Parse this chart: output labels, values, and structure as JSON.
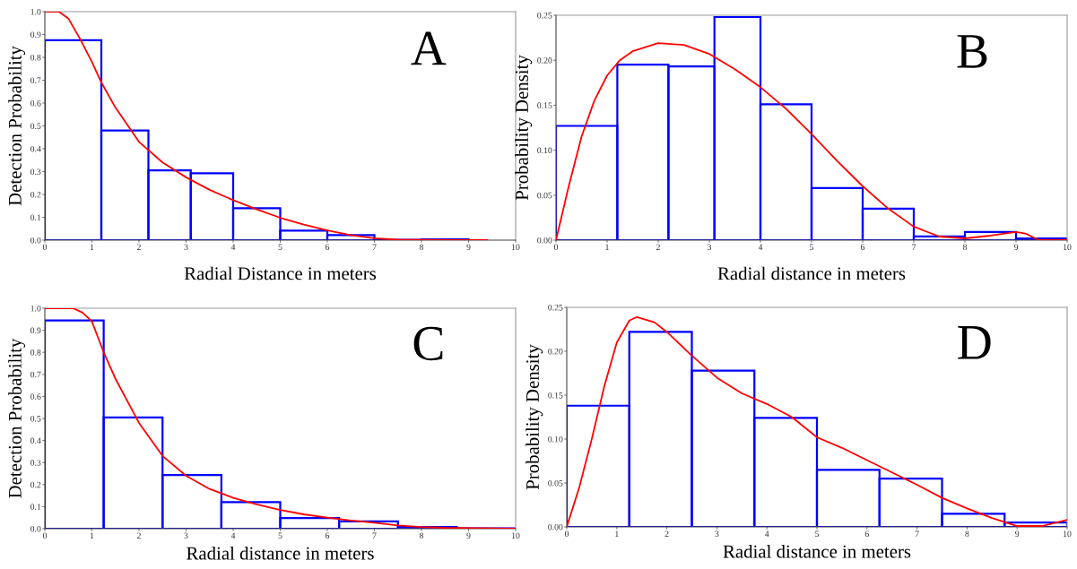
{
  "chart_data": [
    {
      "type": "histogram",
      "xlabel": "Radial Distance in meters",
      "ylabel": "Detection Probability",
      "annotations": [
        "A"
      ],
      "color": "#0000ff",
      "bins": [
        0,
        1.2,
        2.2,
        3.1,
        4,
        5,
        6,
        7,
        8,
        9
      ],
      "values": [
        0.875,
        0.48,
        0.305,
        0.293,
        0.14,
        0.042,
        0.022,
        0.002,
        0.003
      ],
      "series": [
        {
          "type": "line",
          "color": "#ff0000",
          "x": [
            0,
            0.3,
            0.5,
            0.75,
            1,
            1.2,
            1.5,
            2,
            2.5,
            3,
            3.5,
            4,
            4.5,
            5,
            5.5,
            6,
            6.5,
            7,
            7.5,
            8,
            9.4
          ],
          "values": [
            1.0,
            1.0,
            0.97,
            0.88,
            0.78,
            0.69,
            0.58,
            0.43,
            0.34,
            0.275,
            0.22,
            0.175,
            0.135,
            0.098,
            0.068,
            0.043,
            0.022,
            0.008,
            0.002,
            0.001,
            0
          ]
        }
      ],
      "xlim": [
        0,
        10
      ],
      "xticks": [
        0,
        1,
        2,
        3,
        4,
        5,
        6,
        7,
        8,
        9,
        10
      ],
      "ylim": [
        0,
        1
      ],
      "yticks": [
        {
          "value": 0,
          "label": "0.0"
        },
        {
          "value": 0.1,
          "label": "0.1"
        },
        {
          "value": 0.2,
          "label": "0.2"
        },
        {
          "value": 0.3,
          "label": "0.3"
        },
        {
          "value": 0.4,
          "label": "0.4"
        },
        {
          "value": 0.5,
          "label": "0.5"
        },
        {
          "value": 0.6,
          "label": "0.6"
        },
        {
          "value": 0.7,
          "label": "0.7"
        },
        {
          "value": 0.8,
          "label": "0.8"
        },
        {
          "value": 0.9,
          "label": "0.9"
        },
        {
          "value": 1,
          "label": "1.0"
        }
      ]
    },
    {
      "type": "histogram",
      "xlabel": "Radial distance in meters",
      "ylabel": "Probability Density",
      "annotations": [
        "B"
      ],
      "color": "#0000ff",
      "bins": [
        0,
        1.2,
        2.2,
        3.1,
        4,
        5,
        6,
        7,
        8,
        9,
        10
      ],
      "values": [
        0.127,
        0.195,
        0.193,
        0.248,
        0.151,
        0.058,
        0.035,
        0.004,
        0.009,
        0.002
      ],
      "series": [
        {
          "type": "line",
          "color": "#ff0000",
          "x": [
            0,
            0.25,
            0.5,
            0.75,
            1,
            1.25,
            1.5,
            2,
            2.5,
            3,
            3.5,
            4,
            4.5,
            5,
            5.5,
            6,
            6.5,
            7,
            7.5,
            8,
            8.5,
            9,
            9.2,
            9.45,
            10
          ],
          "values": [
            0,
            0.06,
            0.115,
            0.155,
            0.183,
            0.2,
            0.21,
            0.219,
            0.217,
            0.207,
            0.19,
            0.17,
            0.146,
            0.118,
            0.088,
            0.06,
            0.035,
            0.015,
            0.004,
            0.002,
            0.005,
            0.009,
            0.007,
            0,
            0
          ]
        }
      ],
      "xlim": [
        0,
        10
      ],
      "xticks": [
        0,
        1,
        2,
        3,
        4,
        5,
        6,
        7,
        8,
        9,
        10
      ],
      "ylim": [
        0,
        0.25
      ],
      "yticks": [
        {
          "value": 0,
          "label": "0.00"
        },
        {
          "value": 0.05,
          "label": "0.05"
        },
        {
          "value": 0.1,
          "label": "0.10"
        },
        {
          "value": 0.15,
          "label": "0.15"
        },
        {
          "value": 0.2,
          "label": "0.20"
        },
        {
          "value": 0.25,
          "label": "0.25"
        }
      ]
    },
    {
      "type": "histogram",
      "xlabel": "Radial distance in meters",
      "ylabel": "Detection Probability",
      "annotations": [
        "C"
      ],
      "color": "#0000ff",
      "bins": [
        0,
        1.25,
        2.5,
        3.75,
        5,
        6.25,
        7.5,
        8.75,
        10
      ],
      "values": [
        0.945,
        0.505,
        0.243,
        0.12,
        0.048,
        0.033,
        0.008,
        0.002
      ],
      "series": [
        {
          "type": "line",
          "color": "#ff0000",
          "x": [
            0,
            0.6,
            0.8,
            1,
            1.25,
            1.5,
            2,
            2.5,
            3,
            3.5,
            4,
            4.5,
            5,
            5.5,
            6,
            6.5,
            7,
            7.5,
            8,
            8.5,
            10
          ],
          "values": [
            1.0,
            1.0,
            0.98,
            0.94,
            0.8,
            0.68,
            0.48,
            0.33,
            0.24,
            0.18,
            0.14,
            0.11,
            0.085,
            0.065,
            0.05,
            0.037,
            0.027,
            0.015,
            0.008,
            0.004,
            0
          ]
        }
      ],
      "xlim": [
        0,
        10
      ],
      "xticks": [
        0,
        1,
        2,
        3,
        4,
        5,
        6,
        7,
        8,
        9,
        10
      ],
      "ylim": [
        0,
        1
      ],
      "yticks": [
        {
          "value": 0,
          "label": "0.0"
        },
        {
          "value": 0.1,
          "label": "0.1"
        },
        {
          "value": 0.2,
          "label": "0.2"
        },
        {
          "value": 0.3,
          "label": "0.3"
        },
        {
          "value": 0.4,
          "label": "0.4"
        },
        {
          "value": 0.5,
          "label": "0.5"
        },
        {
          "value": 0.6,
          "label": "0.6"
        },
        {
          "value": 0.7,
          "label": "0.7"
        },
        {
          "value": 0.8,
          "label": "0.8"
        },
        {
          "value": 0.9,
          "label": "0.9"
        },
        {
          "value": 1,
          "label": "1.0"
        }
      ]
    },
    {
      "type": "histogram",
      "xlabel": "Radial distance in meters",
      "ylabel": "Probability Density",
      "annotations": [
        "D"
      ],
      "color": "#0000ff",
      "bins": [
        0,
        1.25,
        2.5,
        3.75,
        5,
        6.25,
        7.5,
        8.75,
        10
      ],
      "values": [
        0.138,
        0.222,
        0.178,
        0.124,
        0.065,
        0.055,
        0.015,
        0.005
      ],
      "series": [
        {
          "type": "line",
          "color": "#ff0000",
          "x": [
            0,
            0.25,
            0.5,
            0.75,
            1,
            1.25,
            1.4,
            1.75,
            2,
            2.5,
            3,
            3.5,
            4,
            4.5,
            5,
            5.5,
            6,
            6.5,
            7,
            7.5,
            8,
            8.5,
            9,
            9.5,
            10
          ],
          "values": [
            0,
            0.045,
            0.1,
            0.16,
            0.21,
            0.235,
            0.239,
            0.233,
            0.222,
            0.195,
            0.17,
            0.152,
            0.14,
            0.125,
            0.102,
            0.09,
            0.076,
            0.062,
            0.048,
            0.033,
            0.021,
            0.01,
            0.001,
            0.001,
            0.008
          ]
        }
      ],
      "xlim": [
        0,
        10
      ],
      "xticks": [
        0,
        1,
        2,
        3,
        4,
        5,
        6,
        7,
        8,
        9,
        10
      ],
      "ylim": [
        0,
        0.25
      ],
      "yticks": [
        {
          "value": 0,
          "label": "0.00"
        },
        {
          "value": 0.05,
          "label": "0.05"
        },
        {
          "value": 0.1,
          "label": "0.10"
        },
        {
          "value": 0.15,
          "label": "0.15"
        },
        {
          "value": 0.2,
          "label": "0.20"
        },
        {
          "value": 0.25,
          "label": "0.25"
        }
      ]
    }
  ]
}
